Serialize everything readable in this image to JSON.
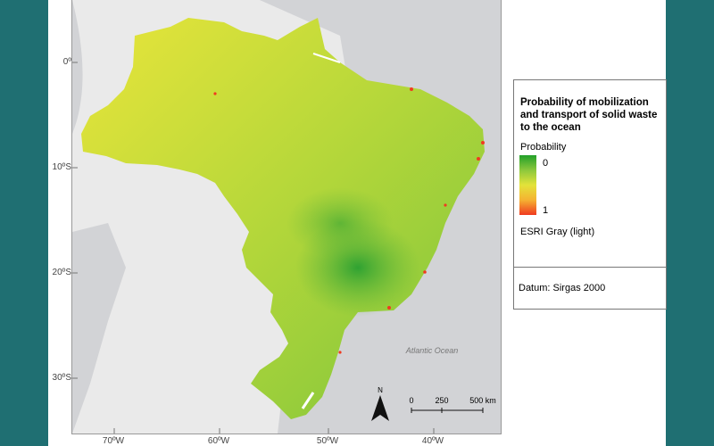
{
  "map": {
    "ocean_label": "Atlantic Ocean",
    "lat_ticks": [
      "0º",
      "10ºS",
      "20ºS",
      "30ºS"
    ],
    "lon_ticks": [
      "70ºW",
      "60ºW",
      "50ºW",
      "40ºW"
    ],
    "scale_labels": [
      "0",
      "250",
      "500 km"
    ],
    "north_label": "N"
  },
  "legend": {
    "title": "Probability of mobilization and transport of solid waste to the ocean",
    "probability_label": "Probability",
    "ramp_low": "0",
    "ramp_high": "1",
    "basemap": "ESRI Gray (light)",
    "datum": "Datum: Sirgas 2000"
  },
  "colors": {
    "ramp": [
      "#22a02a",
      "#8cc83c",
      "#e3e33a",
      "#f5b232",
      "#f03a20"
    ],
    "land": "#eaeaea",
    "ocean": "#d2d3d6",
    "frame": "#1f6f72"
  }
}
